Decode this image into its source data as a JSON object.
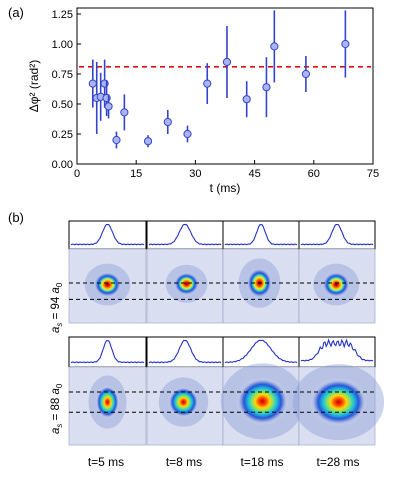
{
  "panel_a_label": "(a)",
  "panel_b_label": "(b)",
  "chart_data": {
    "type": "scatter",
    "title": "",
    "xlabel": "t (ms)",
    "ylabel": "Δφ² (rad²)",
    "xlim": [
      0,
      75
    ],
    "ylim": [
      0,
      1.3
    ],
    "xticks": [
      "0",
      "15",
      "30",
      "45",
      "60",
      "75"
    ],
    "yticks": [
      "0.00",
      "0.25",
      "0.50",
      "0.75",
      "1.00",
      "1.25"
    ],
    "reference_line_y": 0.81,
    "points": [
      {
        "x": 4,
        "y": 0.67,
        "err": 0.2
      },
      {
        "x": 5,
        "y": 0.55,
        "err": 0.3
      },
      {
        "x": 6,
        "y": 0.56,
        "err": 0.2
      },
      {
        "x": 7,
        "y": 0.67,
        "err": 0.2
      },
      {
        "x": 7.5,
        "y": 0.55,
        "err": 0.15
      },
      {
        "x": 8,
        "y": 0.48,
        "err": 0.1
      },
      {
        "x": 10,
        "y": 0.2,
        "err": 0.07
      },
      {
        "x": 12,
        "y": 0.43,
        "err": 0.15
      },
      {
        "x": 18,
        "y": 0.19,
        "err": 0.05
      },
      {
        "x": 23,
        "y": 0.35,
        "err": 0.1
      },
      {
        "x": 28,
        "y": 0.25,
        "err": 0.07
      },
      {
        "x": 33,
        "y": 0.67,
        "err": 0.17
      },
      {
        "x": 38,
        "y": 0.85,
        "err": 0.3
      },
      {
        "x": 43,
        "y": 0.54,
        "err": 0.15
      },
      {
        "x": 48,
        "y": 0.64,
        "err": 0.25
      },
      {
        "x": 50,
        "y": 0.98,
        "err": 0.3
      },
      {
        "x": 58,
        "y": 0.75,
        "err": 0.15
      },
      {
        "x": 68,
        "y": 1.0,
        "err": 0.28
      }
    ],
    "grid": false,
    "legend": "none"
  },
  "panel_b": {
    "row_labels": [
      "a_s = 94 a_0",
      "a_s = 88 a_0"
    ],
    "row_label_parts": [
      {
        "a": "a",
        "s": "s",
        "eq": " = 94 ",
        "a2": "a",
        "z": "0"
      },
      {
        "a": "a",
        "s": "s",
        "eq": " = 88 ",
        "a2": "a",
        "z": "0"
      }
    ],
    "columns": [
      "t=5 ms",
      "t=8 ms",
      "t=18 ms",
      "t=28 ms"
    ],
    "colors": {
      "frame": "#000000",
      "profile": "#2233cc",
      "dashed": "#000000"
    }
  }
}
